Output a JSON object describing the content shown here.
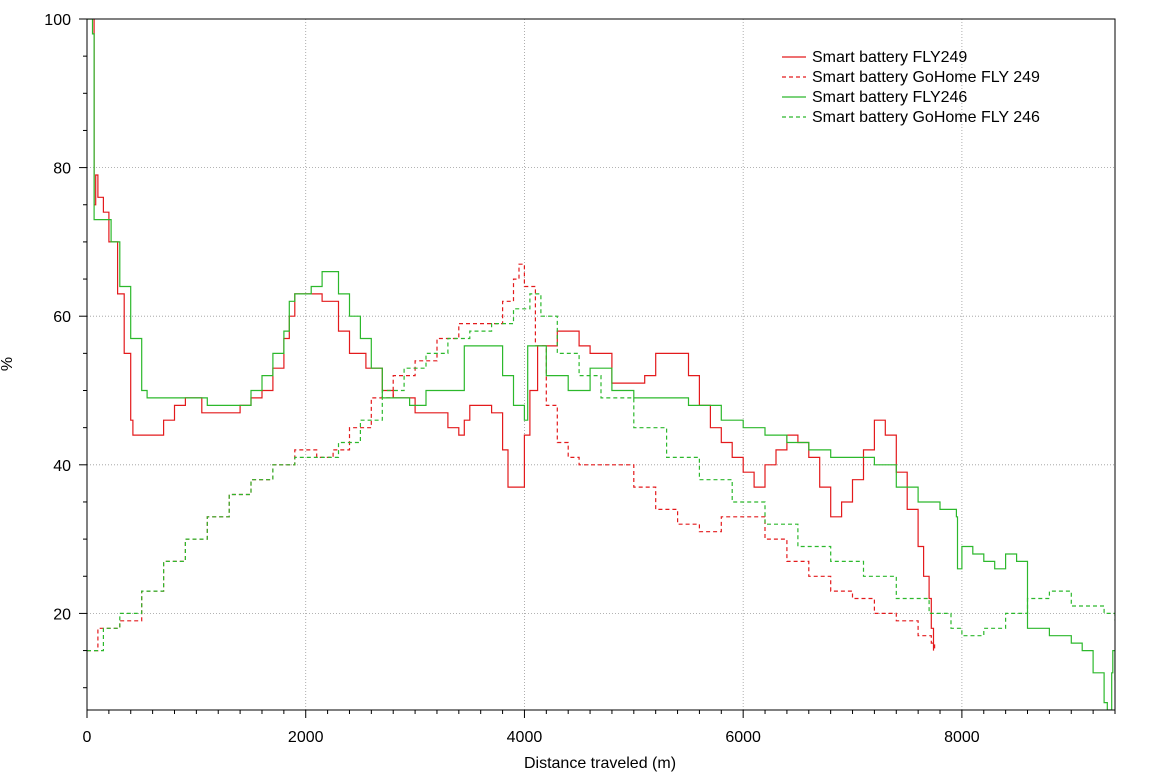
{
  "chart_data": {
    "type": "line",
    "title": "",
    "xlabel": "Distance traveled (m)",
    "ylabel": "%",
    "xlim": [
      0,
      9400
    ],
    "ylim": [
      7,
      100
    ],
    "x_ticks": [
      0,
      2000,
      4000,
      6000,
      8000
    ],
    "y_ticks": [
      20,
      40,
      60,
      80,
      100
    ],
    "grid": true,
    "legend_position": "top-right",
    "series": [
      {
        "name": "Smart battery FLY249",
        "color": "#e31a1c",
        "dash": "solid",
        "points": [
          [
            60,
            100
          ],
          [
            65,
            75
          ],
          [
            80,
            79
          ],
          [
            100,
            76
          ],
          [
            150,
            74
          ],
          [
            200,
            70
          ],
          [
            280,
            63
          ],
          [
            340,
            55
          ],
          [
            400,
            46
          ],
          [
            420,
            44
          ],
          [
            550,
            44
          ],
          [
            700,
            46
          ],
          [
            800,
            48
          ],
          [
            900,
            49
          ],
          [
            1000,
            49
          ],
          [
            1050,
            47
          ],
          [
            1200,
            47
          ],
          [
            1300,
            47
          ],
          [
            1400,
            48
          ],
          [
            1500,
            49
          ],
          [
            1600,
            50
          ],
          [
            1700,
            53
          ],
          [
            1800,
            57
          ],
          [
            1850,
            60
          ],
          [
            1900,
            63
          ],
          [
            2050,
            63
          ],
          [
            2150,
            62
          ],
          [
            2200,
            62
          ],
          [
            2300,
            58
          ],
          [
            2400,
            55
          ],
          [
            2550,
            53
          ],
          [
            2700,
            50
          ],
          [
            2800,
            49
          ],
          [
            3000,
            47
          ],
          [
            3200,
            47
          ],
          [
            3300,
            45
          ],
          [
            3400,
            44
          ],
          [
            3450,
            46
          ],
          [
            3500,
            48
          ],
          [
            3600,
            48
          ],
          [
            3700,
            47
          ],
          [
            3800,
            42
          ],
          [
            3850,
            37
          ],
          [
            3950,
            37
          ],
          [
            4000,
            44
          ],
          [
            4050,
            50
          ],
          [
            4120,
            56
          ],
          [
            4200,
            56
          ],
          [
            4300,
            58
          ],
          [
            4400,
            58
          ],
          [
            4500,
            56
          ],
          [
            4600,
            55
          ],
          [
            4800,
            51
          ],
          [
            5000,
            51
          ],
          [
            5100,
            52
          ],
          [
            5200,
            55
          ],
          [
            5400,
            55
          ],
          [
            5500,
            52
          ],
          [
            5600,
            48
          ],
          [
            5700,
            45
          ],
          [
            5800,
            43
          ],
          [
            5900,
            41
          ],
          [
            6000,
            39
          ],
          [
            6100,
            37
          ],
          [
            6200,
            40
          ],
          [
            6300,
            42
          ],
          [
            6400,
            44
          ],
          [
            6500,
            43
          ],
          [
            6600,
            41
          ],
          [
            6700,
            37
          ],
          [
            6800,
            33
          ],
          [
            6900,
            35
          ],
          [
            7000,
            38
          ],
          [
            7100,
            42
          ],
          [
            7200,
            46
          ],
          [
            7300,
            44
          ],
          [
            7400,
            39
          ],
          [
            7500,
            34
          ],
          [
            7600,
            29
          ],
          [
            7650,
            25
          ],
          [
            7700,
            22
          ],
          [
            7720,
            18
          ],
          [
            7740,
            15
          ]
        ]
      },
      {
        "name": "Smart battery GoHome FLY 249",
        "color": "#e31a1c",
        "dash": "dashed",
        "points": [
          [
            0,
            15
          ],
          [
            100,
            18
          ],
          [
            300,
            19
          ],
          [
            500,
            23
          ],
          [
            700,
            27
          ],
          [
            900,
            30
          ],
          [
            1100,
            33
          ],
          [
            1300,
            36
          ],
          [
            1500,
            38
          ],
          [
            1700,
            40
          ],
          [
            1900,
            42
          ],
          [
            2100,
            41
          ],
          [
            2250,
            42
          ],
          [
            2400,
            45
          ],
          [
            2600,
            49
          ],
          [
            2800,
            52
          ],
          [
            3000,
            54
          ],
          [
            3200,
            57
          ],
          [
            3400,
            59
          ],
          [
            3600,
            59
          ],
          [
            3800,
            62
          ],
          [
            3900,
            65
          ],
          [
            3950,
            67
          ],
          [
            4000,
            64
          ],
          [
            4100,
            56
          ],
          [
            4200,
            48
          ],
          [
            4300,
            43
          ],
          [
            4400,
            41
          ],
          [
            4500,
            40
          ],
          [
            4800,
            40
          ],
          [
            5000,
            37
          ],
          [
            5200,
            34
          ],
          [
            5400,
            32
          ],
          [
            5600,
            31
          ],
          [
            5800,
            33
          ],
          [
            6000,
            33
          ],
          [
            6200,
            30
          ],
          [
            6400,
            27
          ],
          [
            6600,
            25
          ],
          [
            6800,
            23
          ],
          [
            7000,
            22
          ],
          [
            7200,
            20
          ],
          [
            7400,
            19
          ],
          [
            7600,
            17
          ],
          [
            7720,
            16
          ],
          [
            7750,
            15
          ]
        ]
      },
      {
        "name": "Smart battery FLY246",
        "color": "#2cb82c",
        "dash": "solid",
        "points": [
          [
            0,
            100
          ],
          [
            50,
            98
          ],
          [
            65,
            73
          ],
          [
            150,
            73
          ],
          [
            220,
            70
          ],
          [
            300,
            64
          ],
          [
            400,
            57
          ],
          [
            500,
            50
          ],
          [
            550,
            49
          ],
          [
            800,
            49
          ],
          [
            900,
            49
          ],
          [
            1000,
            49
          ],
          [
            1100,
            48
          ],
          [
            1300,
            48
          ],
          [
            1500,
            50
          ],
          [
            1600,
            52
          ],
          [
            1700,
            55
          ],
          [
            1800,
            58
          ],
          [
            1850,
            62
          ],
          [
            1900,
            63
          ],
          [
            2050,
            64
          ],
          [
            2150,
            66
          ],
          [
            2300,
            63
          ],
          [
            2400,
            60
          ],
          [
            2500,
            57
          ],
          [
            2600,
            53
          ],
          [
            2700,
            49
          ],
          [
            2800,
            49
          ],
          [
            2950,
            48
          ],
          [
            3100,
            50
          ],
          [
            3400,
            50
          ],
          [
            3450,
            56
          ],
          [
            3650,
            56
          ],
          [
            3800,
            52
          ],
          [
            3900,
            48
          ],
          [
            4000,
            46
          ],
          [
            4030,
            56
          ],
          [
            4100,
            56
          ],
          [
            4200,
            52
          ],
          [
            4400,
            50
          ],
          [
            4600,
            53
          ],
          [
            4800,
            50
          ],
          [
            5000,
            49
          ],
          [
            5200,
            49
          ],
          [
            5500,
            48
          ],
          [
            5800,
            46
          ],
          [
            6000,
            45
          ],
          [
            6200,
            44
          ],
          [
            6400,
            43
          ],
          [
            6600,
            42
          ],
          [
            6800,
            41
          ],
          [
            7000,
            41
          ],
          [
            7200,
            40
          ],
          [
            7400,
            37
          ],
          [
            7600,
            35
          ],
          [
            7800,
            34
          ],
          [
            7950,
            33
          ],
          [
            7960,
            26
          ],
          [
            8000,
            29
          ],
          [
            8100,
            28
          ],
          [
            8200,
            27
          ],
          [
            8300,
            26
          ],
          [
            8400,
            28
          ],
          [
            8500,
            27
          ],
          [
            8600,
            18
          ],
          [
            8800,
            17
          ],
          [
            8950,
            17
          ],
          [
            9000,
            16
          ],
          [
            9100,
            15
          ],
          [
            9200,
            12
          ],
          [
            9300,
            8
          ],
          [
            9330,
            7
          ],
          [
            9370,
            12
          ],
          [
            9380,
            15
          ],
          [
            9400,
            11
          ]
        ]
      },
      {
        "name": "Smart battery GoHome FLY 246",
        "color": "#2cb82c",
        "dash": "dashed",
        "points": [
          [
            0,
            15
          ],
          [
            150,
            18
          ],
          [
            300,
            20
          ],
          [
            500,
            23
          ],
          [
            700,
            27
          ],
          [
            900,
            30
          ],
          [
            1100,
            33
          ],
          [
            1300,
            36
          ],
          [
            1500,
            38
          ],
          [
            1700,
            40
          ],
          [
            1900,
            41
          ],
          [
            2100,
            41
          ],
          [
            2300,
            43
          ],
          [
            2500,
            46
          ],
          [
            2700,
            50
          ],
          [
            2900,
            53
          ],
          [
            3100,
            55
          ],
          [
            3300,
            57
          ],
          [
            3500,
            58
          ],
          [
            3700,
            59
          ],
          [
            3900,
            61
          ],
          [
            4050,
            63
          ],
          [
            4150,
            60
          ],
          [
            4300,
            55
          ],
          [
            4500,
            52
          ],
          [
            4700,
            49
          ],
          [
            5000,
            45
          ],
          [
            5300,
            41
          ],
          [
            5600,
            38
          ],
          [
            5900,
            35
          ],
          [
            6200,
            32
          ],
          [
            6500,
            29
          ],
          [
            6800,
            27
          ],
          [
            7100,
            25
          ],
          [
            7400,
            22
          ],
          [
            7700,
            20
          ],
          [
            7900,
            18
          ],
          [
            8000,
            17
          ],
          [
            8200,
            18
          ],
          [
            8400,
            20
          ],
          [
            8600,
            22
          ],
          [
            8800,
            23
          ],
          [
            9000,
            21
          ],
          [
            9300,
            20
          ],
          [
            9400,
            19
          ]
        ]
      }
    ]
  }
}
